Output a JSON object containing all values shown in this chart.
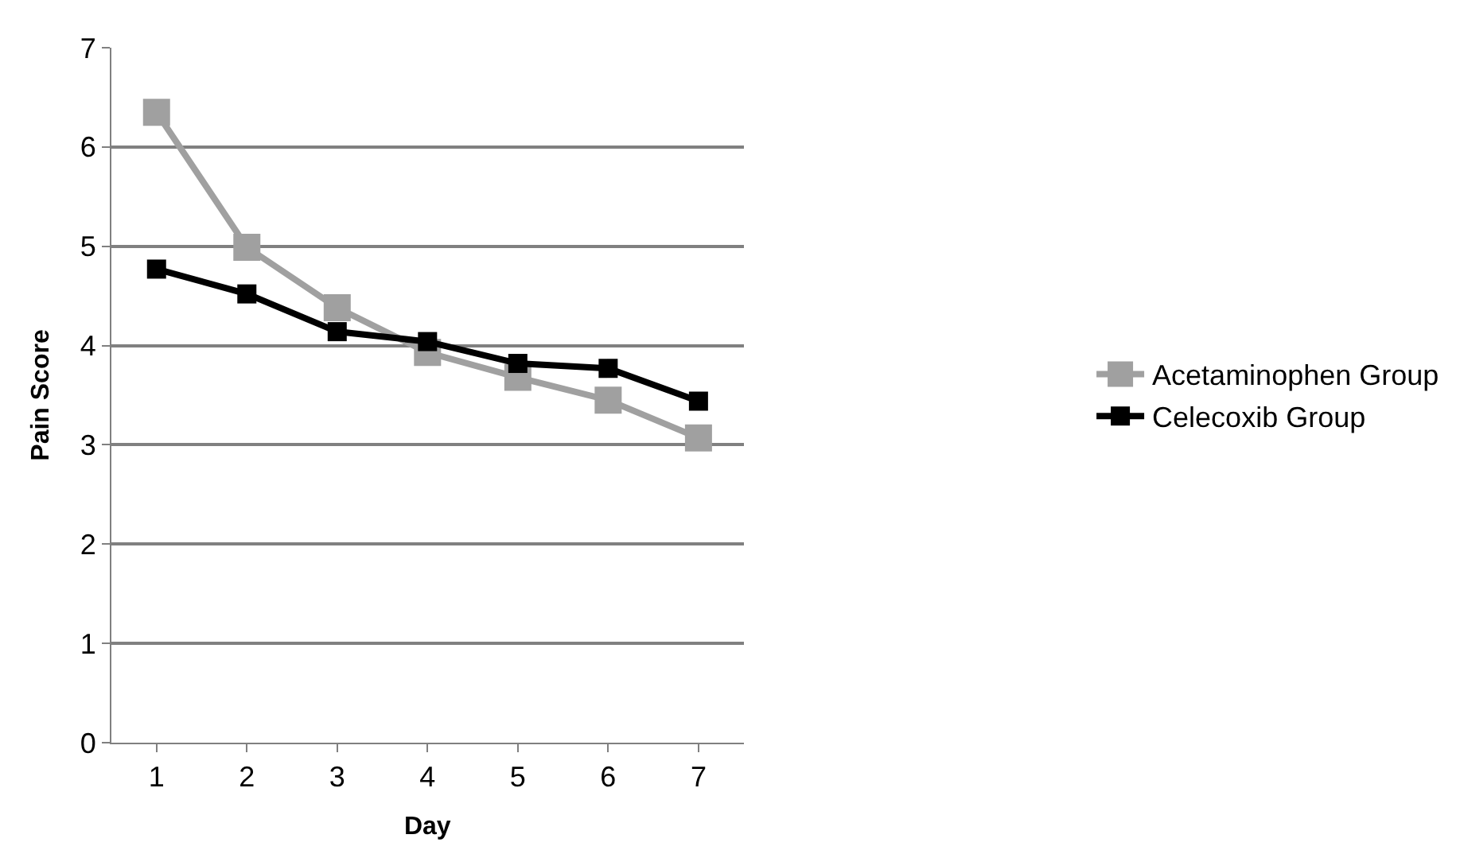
{
  "chart_data": {
    "type": "line",
    "xlabel": "Day",
    "ylabel": "Pain Score",
    "categories": [
      "1",
      "2",
      "3",
      "4",
      "5",
      "6",
      "7"
    ],
    "series": [
      {
        "name": "Acetaminophen Group",
        "color": "#a0a0a0",
        "values": [
          6.35,
          4.99,
          4.38,
          3.93,
          3.68,
          3.45,
          3.07
        ]
      },
      {
        "name": "Celecoxib Group",
        "color": "#000000",
        "values": [
          4.77,
          4.52,
          4.14,
          4.04,
          3.82,
          3.77,
          3.44
        ]
      }
    ],
    "ylim": [
      0,
      7
    ],
    "yticks": [
      0,
      1,
      2,
      3,
      4,
      5,
      6,
      7
    ],
    "grid": "y",
    "legend": "right",
    "marker": "square",
    "line_style": "solid"
  }
}
